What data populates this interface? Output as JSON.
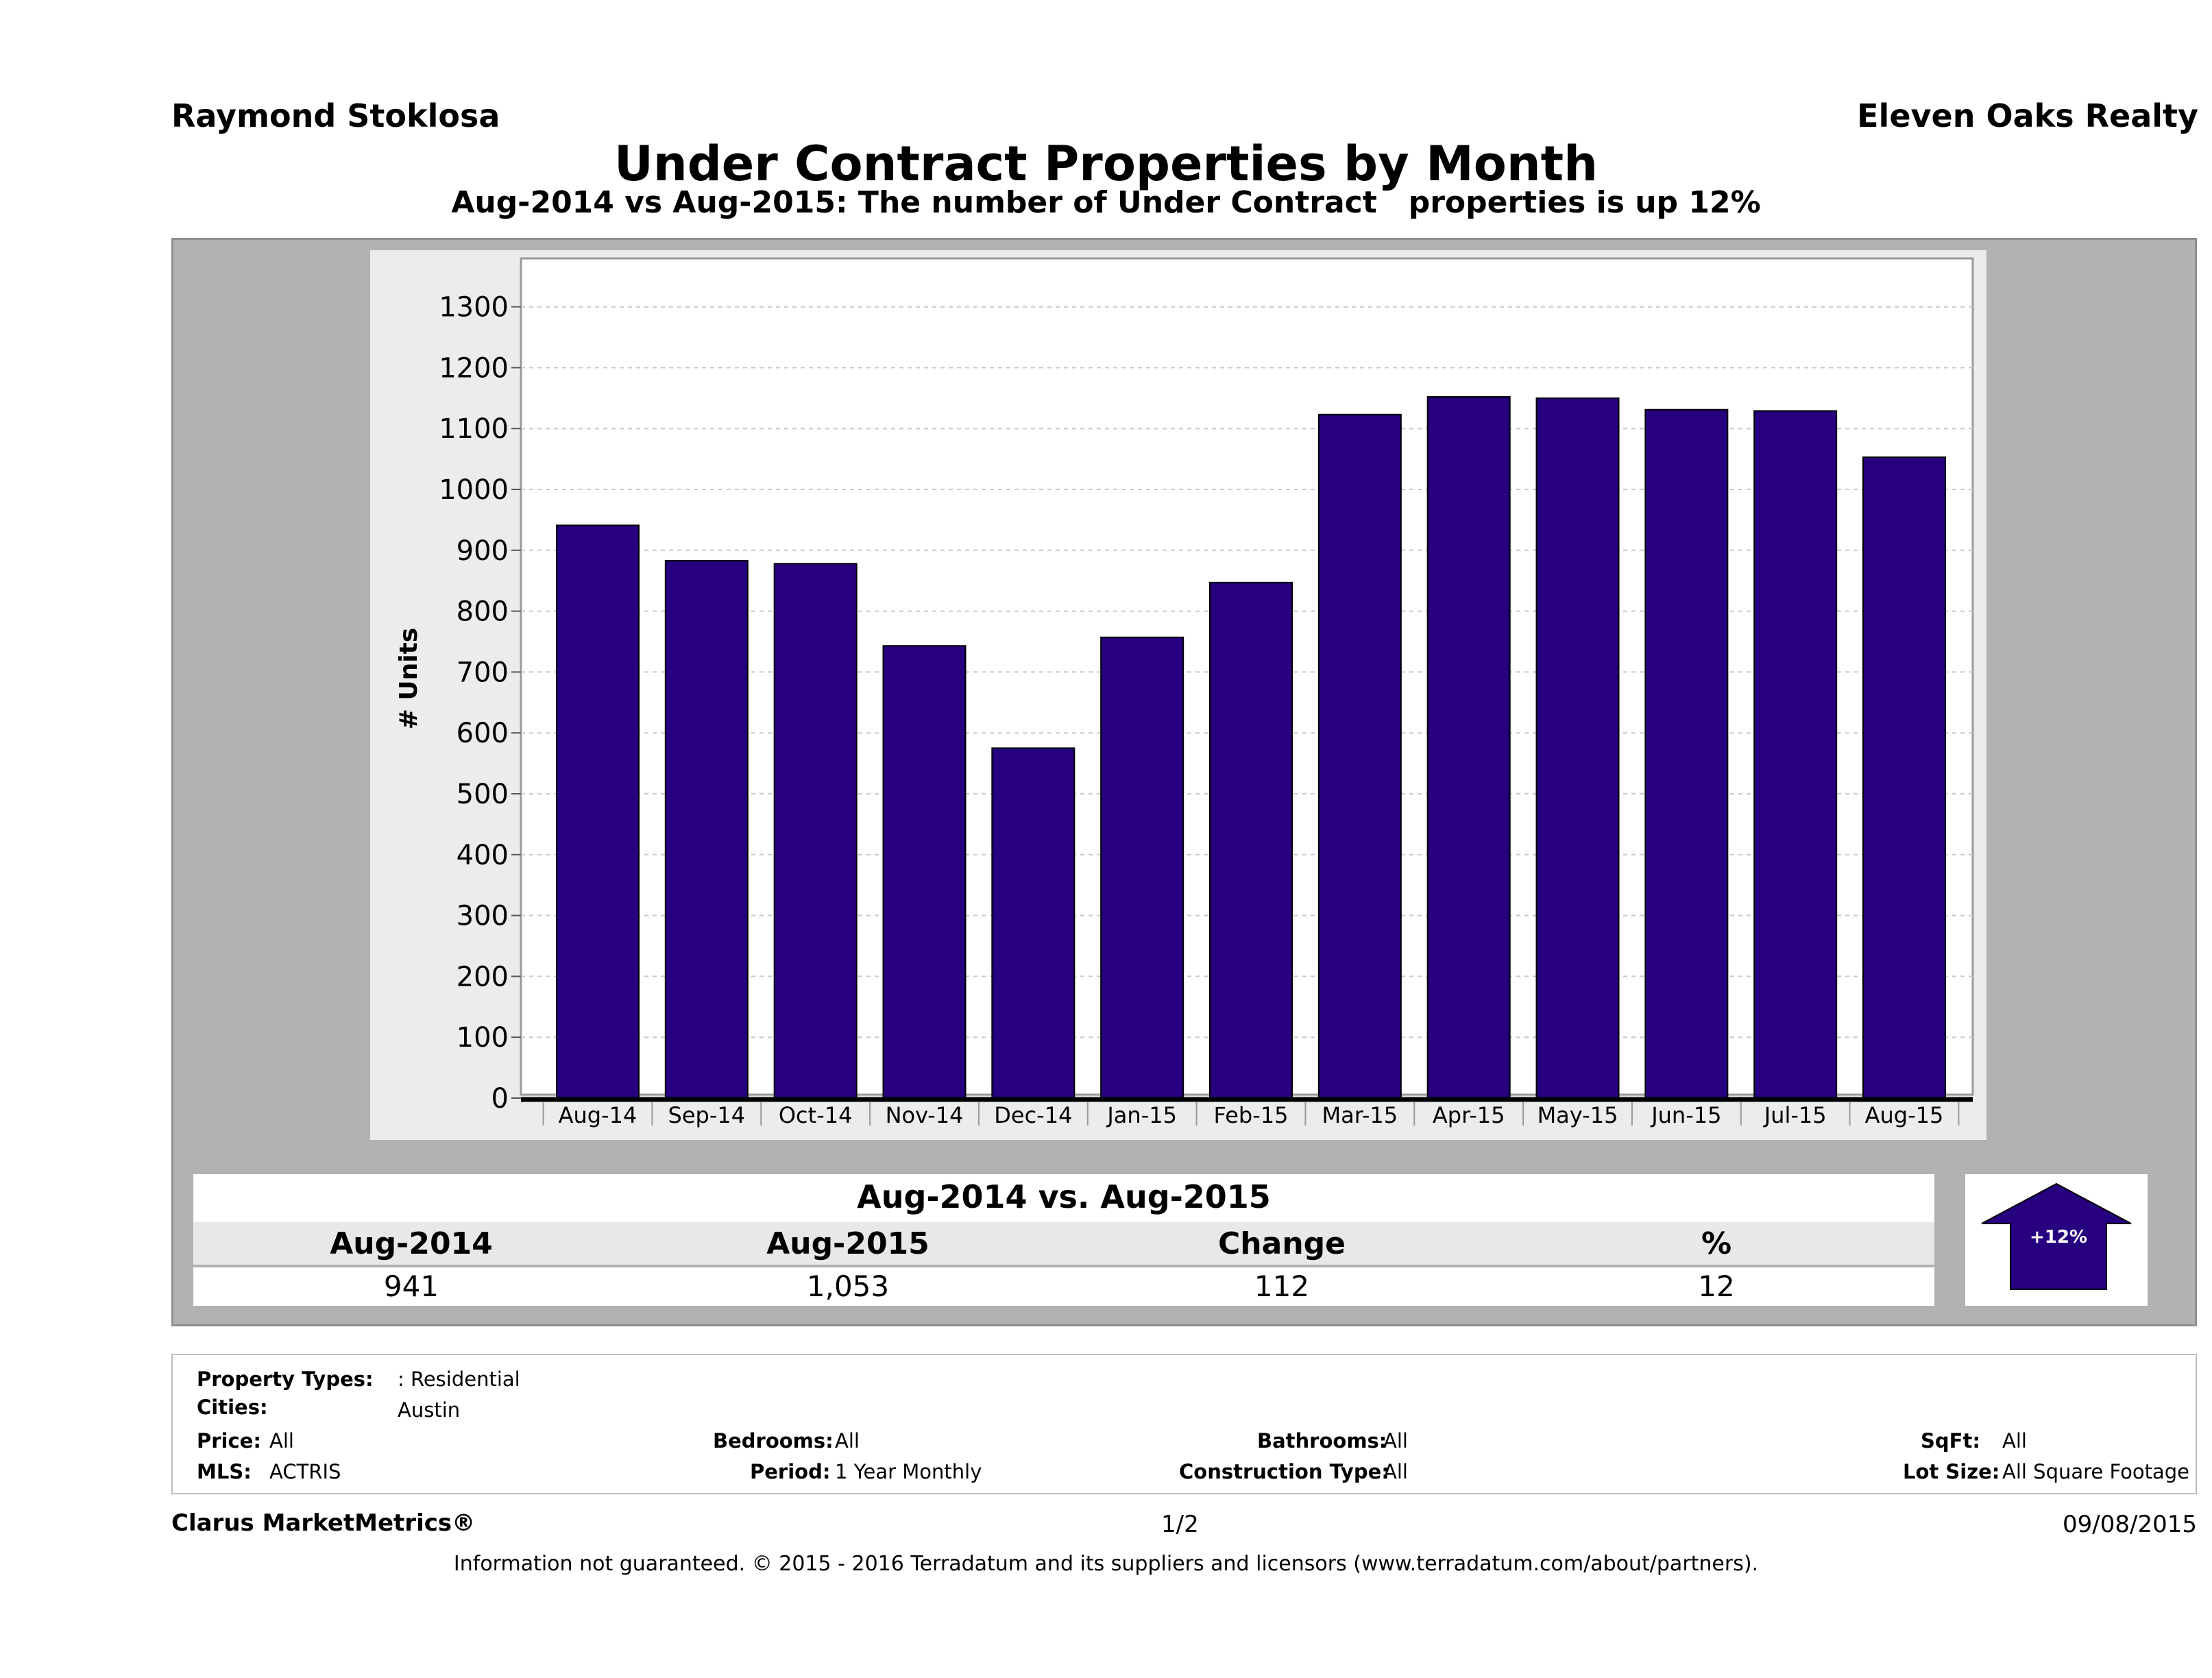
{
  "header": {
    "agent": "Raymond Stoklosa",
    "company": "Eleven Oaks Realty",
    "title": "Under Contract Properties by Month",
    "subtitle": "Aug-2014 vs Aug-2015: The number of Under Contract   properties is up 12%"
  },
  "chart_data": {
    "type": "bar",
    "title": "Under Contract Properties by Month",
    "subtitle": "Aug-2014 vs Aug-2015: The number of Under Contract   properties is up 12%",
    "xlabel": "",
    "ylabel": "# Units",
    "categories": [
      "Aug-14",
      "Sep-14",
      "Oct-14",
      "Nov-14",
      "Dec-14",
      "Jan-15",
      "Feb-15",
      "Mar-15",
      "Apr-15",
      "May-15",
      "Jun-15",
      "Jul-15",
      "Aug-15"
    ],
    "values": [
      941,
      883,
      878,
      743,
      575,
      757,
      847,
      1123,
      1152,
      1150,
      1131,
      1129,
      1053
    ],
    "ylim": [
      0,
      1380
    ],
    "yticks": [
      "0",
      "100",
      "200",
      "300",
      "400",
      "500",
      "600",
      "700",
      "800",
      "900",
      "1000",
      "1100",
      "1200",
      "1300"
    ],
    "grid": true,
    "bar_color": "#26007f"
  },
  "comparison": {
    "title": "Aug-2014 vs. Aug-2015",
    "headers": [
      "Aug-2014",
      "Aug-2015",
      "Change",
      "%"
    ],
    "values": [
      "941",
      "1,053",
      "112",
      "12"
    ],
    "badge": "+12%",
    "badge_color": "#26007f"
  },
  "filters": {
    "property_types_label": "Property Types:",
    "property_types_value": ": Residential",
    "cities_label": "Cities:",
    "cities_value": "Austin",
    "price_label": "Price:",
    "price_value": "All",
    "bedrooms_label": "Bedrooms:",
    "bedrooms_value": "All",
    "bathrooms_label": "Bathrooms:",
    "bathrooms_value": "All",
    "sqft_label": "SqFt:",
    "sqft_value": "All",
    "mls_label": "MLS:",
    "mls_value": "ACTRIS",
    "period_label": "Period:",
    "period_value": "1 Year Monthly",
    "construction_label": "Construction Type:",
    "construction_value": "All",
    "lot_label": "Lot Size:",
    "lot_value": "All Square Footage"
  },
  "footer": {
    "brand": "Clarus MarketMetrics®",
    "page": "1/2",
    "date": "09/08/2015",
    "disclaimer": "Information not guaranteed. © 2015 - 2016 Terradatum and its suppliers and licensors (www.terradatum.com/about/partners)."
  }
}
